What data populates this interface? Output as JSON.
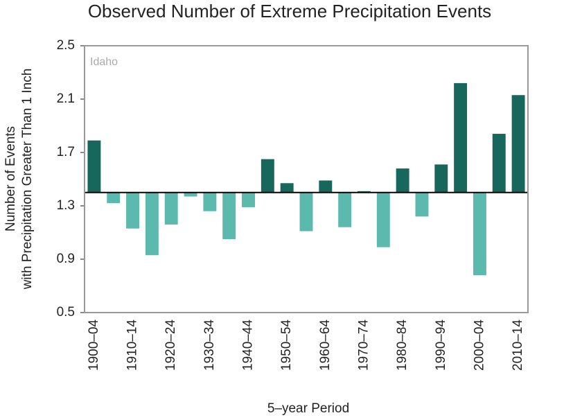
{
  "chart_data": {
    "type": "bar",
    "title": "Observed Number of Extreme Precipitation Events",
    "annotation": "Idaho",
    "x_label": "5–year Period",
    "y_label": [
      "Number of Events",
      "with Precipitation Greater Than 1 Inch"
    ],
    "categories": [
      "1900–04",
      null,
      "1910–14",
      null,
      "1920–24",
      null,
      "1930–34",
      null,
      "1940–44",
      null,
      "1950–54",
      null,
      "1960–64",
      null,
      "1970–74",
      null,
      "1980–84",
      null,
      "1990–94",
      null,
      "2000–04",
      null,
      "2010–14"
    ],
    "values": [
      1.79,
      1.32,
      1.13,
      0.93,
      1.16,
      1.37,
      1.26,
      1.05,
      1.29,
      1.65,
      1.47,
      1.11,
      1.49,
      1.14,
      1.41,
      0.99,
      1.58,
      1.22,
      1.61,
      2.22,
      0.78,
      1.84,
      2.13
    ],
    "baseline": 1.4,
    "colors": {
      "above": "#17675c",
      "below": "#5cb9ae"
    },
    "ylim": [
      0.5,
      2.5
    ],
    "yticks": [
      0.5,
      0.9,
      1.3,
      1.7,
      2.1,
      2.5
    ],
    "grid": false
  }
}
